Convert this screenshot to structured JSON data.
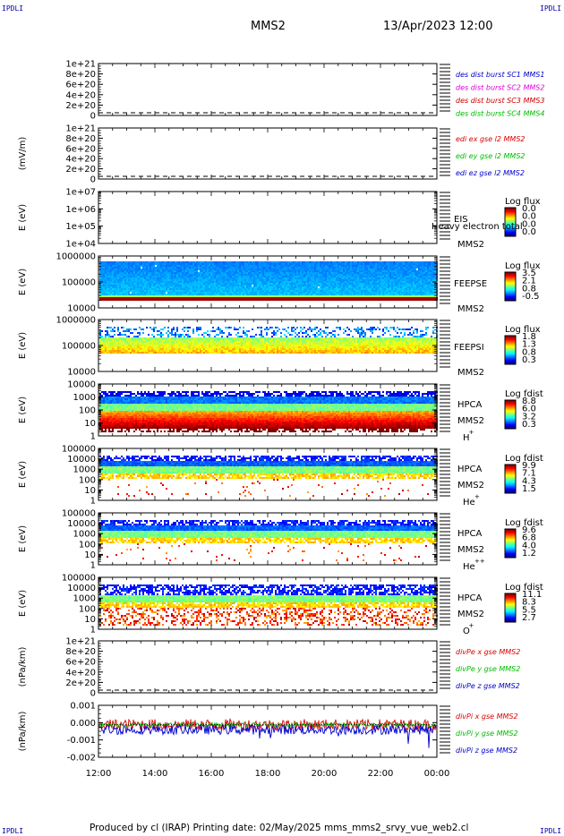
{
  "page": {
    "corner_tl": "IPDLI",
    "corner_tr": "IPDLI",
    "corner_bl": "IPDLI",
    "corner_br": "IPDLI",
    "title": "MMS2",
    "datetime": "13/Apr/2023 12:00",
    "footer": "Produced by cl (IRAP)   Printing date: 02/May/2025   mms_mms2_srvy_vue_web2.cl"
  },
  "colors": {
    "mms1": "#0000cc",
    "mms2": "#dd00dd",
    "mms3": "#cc0000",
    "mms4": "#00bb00",
    "x": "#dd0000",
    "y": "#00bb00",
    "z": "#0000cc"
  },
  "chart_data": [
    {
      "id": "panel1",
      "type": "line",
      "ylabel": "",
      "yticks": [
        "1e+21",
        "8e+20",
        "6e+20",
        "4e+20",
        "2e+20",
        "0"
      ],
      "ylim": [
        0,
        1e+21
      ],
      "series": [
        {
          "name": "des dist burst SC1 MMS1",
          "values": [
            0,
            0
          ]
        },
        {
          "name": "des dist burst SC2 MMS2",
          "values": [
            0,
            0
          ]
        },
        {
          "name": "des dist burst SC3 MMS3",
          "values": [
            0,
            0
          ]
        },
        {
          "name": "des dist burst SC4 MMS4",
          "values": [
            0,
            0
          ]
        }
      ]
    },
    {
      "id": "panel2",
      "type": "line",
      "ylabel": "(mV/m)",
      "yticks": [
        "1e+21",
        "8e+20",
        "6e+20",
        "4e+20",
        "2e+20",
        "0"
      ],
      "ylim": [
        0,
        1e+21
      ],
      "series": [
        {
          "name": "edi ex gse l2 MMS2",
          "values": [
            0,
            0
          ]
        },
        {
          "name": "edi ey gse l2 MMS2",
          "values": [
            0,
            0
          ]
        },
        {
          "name": "edi ez gse l2 MMS2",
          "values": [
            0,
            0
          ]
        }
      ]
    },
    {
      "id": "panel3",
      "type": "heatmap",
      "ylabel": "E (eV)",
      "yscale": "log",
      "yticks": [
        "1e+07",
        "1e+06",
        "1e+05",
        "1e+04"
      ],
      "labels": [
        "EIS",
        "MMS2"
      ],
      "overlay_text": "Heavy electron total",
      "colorbar_title": "Log flux",
      "colorbar_ticks": [
        "0.0",
        "0.0",
        "0.0",
        "0.0"
      ]
    },
    {
      "id": "panel4",
      "type": "heatmap",
      "ylabel": "E (eV)",
      "yscale": "log",
      "yticks": [
        "1000000",
        "100000",
        "10000"
      ],
      "labels": [
        "FEEPSE",
        "MMS2"
      ],
      "colorbar_title": "Log flux",
      "colorbar_ticks": [
        "3.5",
        "2.1",
        "0.8",
        "-0.5"
      ]
    },
    {
      "id": "panel5",
      "type": "heatmap",
      "ylabel": "E (eV)",
      "yscale": "log",
      "yticks": [
        "1000000",
        "100000",
        "10000"
      ],
      "labels": [
        "FEEPSI",
        "MMS2"
      ],
      "colorbar_title": "Log flux",
      "colorbar_ticks": [
        "1.8",
        "1.3",
        "0.8",
        "0.3"
      ]
    },
    {
      "id": "panel6",
      "type": "heatmap",
      "ylabel": "E (eV)",
      "yscale": "log",
      "yticks": [
        "10000",
        "1000",
        "100",
        "10",
        "1"
      ],
      "labels": [
        "HPCA",
        "MMS2",
        "H",
        "+"
      ],
      "colorbar_title": "Log fdist",
      "colorbar_ticks": [
        "8.8",
        "6.0",
        "3.2",
        "0.3"
      ]
    },
    {
      "id": "panel7",
      "type": "heatmap",
      "ylabel": "E (eV)",
      "yscale": "log",
      "yticks": [
        "100000",
        "10000",
        "1000",
        "100",
        "10",
        "1"
      ],
      "labels": [
        "HPCA",
        "MMS2",
        "He",
        "+"
      ],
      "colorbar_title": "Log fdist",
      "colorbar_ticks": [
        "9.9",
        "7.1",
        "4.3",
        "1.5"
      ]
    },
    {
      "id": "panel8",
      "type": "heatmap",
      "ylabel": "E (eV)",
      "yscale": "log",
      "yticks": [
        "100000",
        "10000",
        "1000",
        "100",
        "10",
        "1"
      ],
      "labels": [
        "HPCA",
        "MMS2",
        "He",
        "++"
      ],
      "colorbar_title": "Log fdist",
      "colorbar_ticks": [
        "9.6",
        "6.8",
        "4.0",
        "1.2"
      ]
    },
    {
      "id": "panel9",
      "type": "heatmap",
      "ylabel": "E (eV)",
      "yscale": "log",
      "yticks": [
        "100000",
        "10000",
        "1000",
        "100",
        "10",
        "1"
      ],
      "labels": [
        "HPCA",
        "MMS2",
        "O",
        "+"
      ],
      "colorbar_title": "Log fdist",
      "colorbar_ticks": [
        "11.1",
        "8.3",
        "5.5",
        "2.7"
      ]
    },
    {
      "id": "panel10",
      "type": "line",
      "ylabel": "(nPa/km)",
      "yticks": [
        "1e+21",
        "8e+20",
        "6e+20",
        "4e+20",
        "2e+20",
        "0"
      ],
      "ylim": [
        0,
        1e+21
      ],
      "series": [
        {
          "name": "divPe x gse MMS2",
          "values": [
            0,
            0
          ]
        },
        {
          "name": "divPe y gse MMS2",
          "values": [
            0,
            0
          ]
        },
        {
          "name": "divPe z gse MMS2",
          "values": [
            0,
            0
          ]
        }
      ]
    },
    {
      "id": "panel11",
      "type": "line",
      "ylabel": "(nPa/km)",
      "yticks": [
        "0.001",
        "0.000",
        "-0.001",
        "-0.002"
      ],
      "ylim": [
        -0.002,
        0.0012
      ],
      "series": [
        {
          "name": "divPi x gse MMS2"
        },
        {
          "name": "divPi y gse MMS2"
        },
        {
          "name": "divPi z gse MMS2"
        }
      ]
    }
  ],
  "xaxis": {
    "ticks": [
      "12:00",
      "14:00",
      "16:00",
      "18:00",
      "20:00",
      "22:00",
      "00:00"
    ]
  }
}
